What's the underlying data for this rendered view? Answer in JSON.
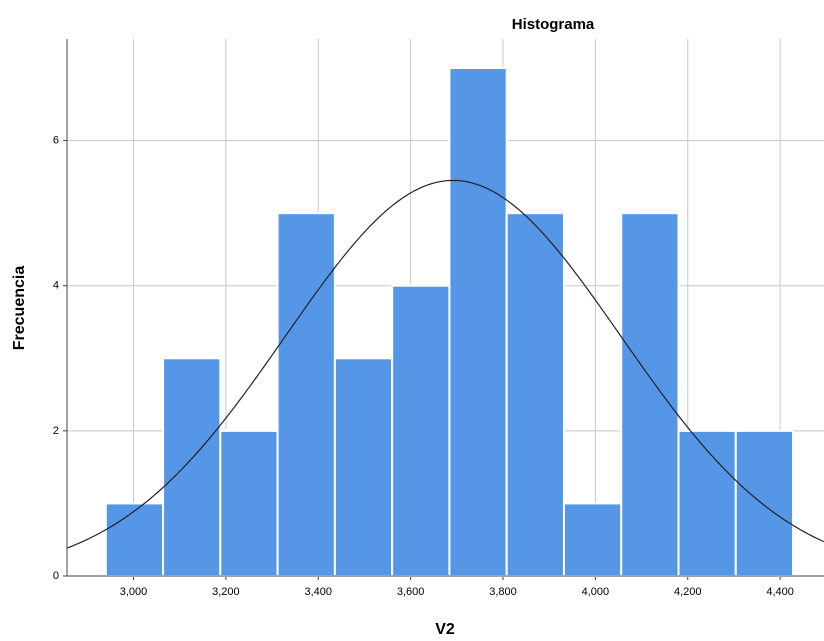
{
  "chart_data": {
    "type": "histogram",
    "title": "Histograma",
    "x_label": "V2",
    "y_label": "Frecuencia",
    "bins": [
      2940,
      3064,
      3188,
      3312,
      3436,
      3560,
      3684,
      3808,
      3932,
      4056,
      4180,
      4304,
      4428
    ],
    "values": [
      1,
      3,
      2,
      5,
      3,
      4,
      7,
      5,
      1,
      5,
      2,
      2
    ],
    "color": "#5596e6",
    "xlim": [
      2856,
      4495
    ],
    "xticks": [
      {
        "value": 3000,
        "label": "3,000"
      },
      {
        "value": 3200,
        "label": "3,200"
      },
      {
        "value": 3400,
        "label": "3,400"
      },
      {
        "value": 3600,
        "label": "3,600"
      },
      {
        "value": 3800,
        "label": "3,800"
      },
      {
        "value": 4000,
        "label": "4,000"
      },
      {
        "value": 4200,
        "label": "4,200"
      },
      {
        "value": 4400,
        "label": "4,400"
      }
    ],
    "ylim": [
      0,
      7.4
    ],
    "yticks": [
      0,
      2,
      4,
      6
    ],
    "grid": true,
    "normal_curve": {
      "mean": 3692,
      "sd": 363
    }
  }
}
